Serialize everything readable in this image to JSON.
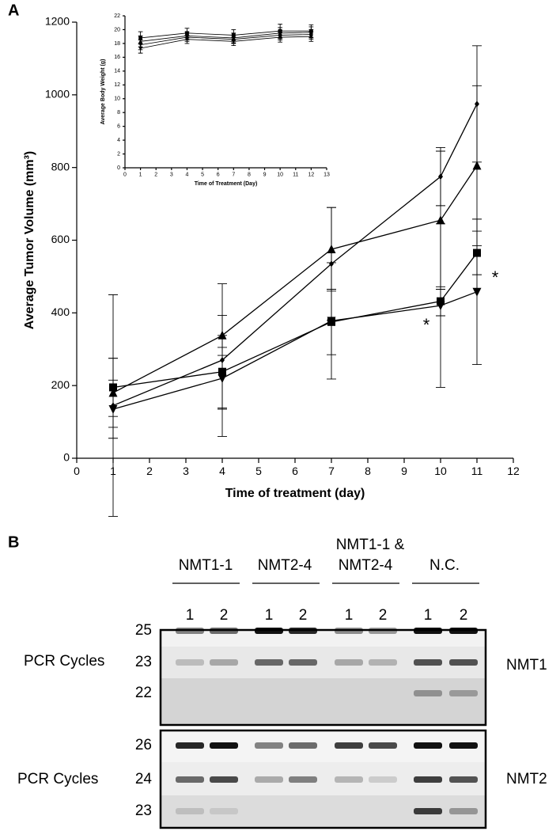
{
  "panel_labels": [
    "A",
    "B"
  ],
  "chart_data": [
    {
      "type": "line",
      "xlabel": "Time of treatment (day)",
      "ylabel": "Average Tumor Volume (mm³)",
      "x": [
        1,
        4,
        7,
        10,
        11
      ],
      "xlim": [
        0,
        12
      ],
      "xticks": [
        0,
        1,
        2,
        3,
        4,
        5,
        6,
        7,
        8,
        9,
        10,
        11,
        12
      ],
      "ylim": [
        0,
        1200
      ],
      "yticks": [
        0,
        200,
        400,
        600,
        800,
        1000,
        1200
      ],
      "series": [
        {
          "color": "#000",
          "marker": "diamond",
          "values": [
            145,
            270,
            535,
            775,
            975
          ],
          "errors": [
            305,
            210,
            155,
            80,
            160
          ]
        },
        {
          "color": "#000",
          "marker": "triangle-up",
          "values": [
            180,
            338,
            575,
            655,
            805
          ],
          "errors": [
            95,
            55,
            115,
            190,
            220
          ]
        },
        {
          "color": "#000",
          "marker": "square",
          "values": [
            195,
            238,
            375,
            432,
            565
          ],
          "errors": [
            80,
            100,
            90,
            40,
            60
          ]
        },
        {
          "color": "#000",
          "marker": "triangle-down",
          "values": [
            135,
            220,
            378,
            420,
            458
          ],
          "errors": [
            80,
            85,
            160,
            225,
            200
          ]
        }
      ],
      "annotations": [
        "*",
        "*"
      ]
    },
    {
      "type": "line",
      "xlabel": "Time of Treatment (Day)",
      "ylabel": "Average Body Weight (g)",
      "x": [
        1,
        4,
        7,
        10,
        12
      ],
      "xlim": [
        0,
        13
      ],
      "xticks": [
        0,
        1,
        2,
        3,
        4,
        5,
        6,
        7,
        8,
        9,
        10,
        11,
        12,
        13
      ],
      "ylim": [
        0,
        22
      ],
      "yticks": [
        0,
        2,
        4,
        6,
        8,
        10,
        12,
        14,
        16,
        18,
        20,
        22
      ],
      "series": [
        {
          "color": "#000",
          "marker": "square",
          "values": [
            18.8,
            19.5,
            19.2,
            19.8,
            19.8
          ],
          "errors": [
            0.9,
            0.7,
            0.8,
            1,
            0.9
          ]
        },
        {
          "color": "#000",
          "marker": "triangle-up",
          "values": [
            18.3,
            19.1,
            18.8,
            19.5,
            19.6
          ],
          "errors": [
            0.8,
            0.6,
            0.7,
            0.8,
            0.8
          ]
        },
        {
          "color": "#000",
          "marker": "diamond",
          "values": [
            17.8,
            18.9,
            18.6,
            19.2,
            19.3
          ],
          "errors": [
            0.7,
            0.6,
            0.6,
            0.7,
            0.7
          ]
        },
        {
          "color": "#000",
          "marker": "triangle-down",
          "values": [
            17.3,
            18.6,
            18.3,
            18.9,
            19.0
          ],
          "errors": [
            0.7,
            0.6,
            0.6,
            0.7,
            0.7
          ]
        }
      ]
    }
  ],
  "gel": {
    "groups": [
      "NMT1-1",
      "NMT2-4",
      "NMT1-1 &",
      "NMT2-4",
      "N.C."
    ],
    "lanes": [
      "1",
      "2",
      "1",
      "2",
      "1",
      "2",
      "1",
      "2"
    ],
    "blocks": [
      {
        "axis_label": "PCR Cycles",
        "cycles": [
          "25",
          "23",
          "22"
        ],
        "gene": "NMT1"
      },
      {
        "axis_label": "PCR Cycles",
        "cycles": [
          "26",
          "24",
          "23"
        ],
        "gene": "NMT2"
      }
    ]
  }
}
